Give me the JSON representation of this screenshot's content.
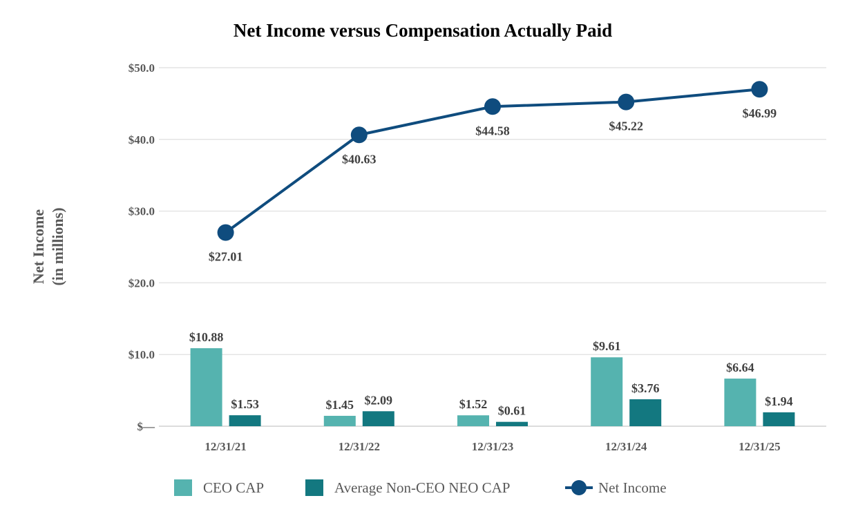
{
  "chart_data": {
    "type": "bar+line",
    "title": "Net Income versus Compensation Actually Paid",
    "ylabel_lines": [
      "Net Income",
      "(in millions)"
    ],
    "categories": [
      "12/31/21",
      "12/31/22",
      "12/31/23",
      "12/31/24",
      "12/31/25"
    ],
    "ylim": [
      0,
      50
    ],
    "yticks": [
      0,
      10,
      20,
      30,
      40,
      50
    ],
    "ytick_labels": [
      "$—",
      "$10.0",
      "$20.0",
      "$30.0",
      "$40.0",
      "$50.0"
    ],
    "grid": true,
    "series": [
      {
        "name": "CEO CAP",
        "kind": "bar",
        "color": "#55B3AF",
        "values": [
          10.88,
          1.45,
          1.52,
          9.61,
          6.64
        ],
        "labels": [
          "$10.88",
          "$1.45",
          "$1.52",
          "$9.61",
          "$6.64"
        ]
      },
      {
        "name": "Average Non-CEO NEO CAP",
        "kind": "bar",
        "color": "#137880",
        "values": [
          1.53,
          2.09,
          0.61,
          3.76,
          1.94
        ],
        "labels": [
          "$1.53",
          "$2.09",
          "$0.61",
          "$3.76",
          "$1.94"
        ]
      },
      {
        "name": "Net Income",
        "kind": "line",
        "color": "#0F4C7E",
        "values": [
          27.01,
          40.63,
          44.58,
          45.22,
          46.99
        ],
        "labels": [
          "$27.01",
          "$40.63",
          "$44.58",
          "$45.22",
          "$46.99"
        ]
      }
    ],
    "legend_position": "bottom"
  }
}
